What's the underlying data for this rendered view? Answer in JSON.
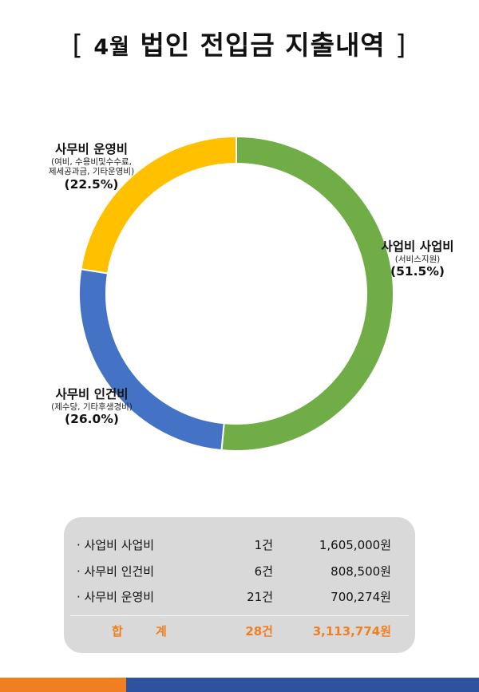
{
  "title": {
    "open_bracket": "[",
    "month": "4월",
    "text": "법인 전입금 지출내역",
    "close_bracket": "]"
  },
  "chart_data": {
    "type": "pie",
    "donut": true,
    "slices": [
      {
        "label": "사업비 사업비",
        "detail": "(서비스지원)",
        "value": 51.5,
        "pct_label": "(51.5%)",
        "color": "#70ad47"
      },
      {
        "label": "사무비 인건비",
        "detail": "(제수당, 기타후생경비)",
        "value": 26.0,
        "pct_label": "(26.0%)",
        "color": "#4472c4"
      },
      {
        "label": "사무비 운영비",
        "detail": "(여비, 수용비및수수료, 제세공과금, 기타운영비)",
        "value": 22.5,
        "pct_label": "(22.5%)",
        "color": "#ffc000"
      }
    ]
  },
  "labels": {
    "business": {
      "name": "사업비 사업비",
      "sub1": "(서비스지원)",
      "pct": "(51.5%)"
    },
    "personnel": {
      "name": "사무비 인건비",
      "sub1": "(제수당, 기타후생경비)",
      "pct": "(26.0%)"
    },
    "operating": {
      "name": "사무비 운영비",
      "sub1": "(여비, 수용비및수수료,",
      "sub2": "제세공과금, 기타운영비)",
      "pct": "(22.5%)"
    }
  },
  "summary": {
    "rows": [
      {
        "item": "· 사업비 사업비",
        "count": "1건",
        "amount": "1,605,000원"
      },
      {
        "item": "· 사무비 인건비",
        "count": "6건",
        "amount": "808,500원"
      },
      {
        "item": "· 사무비 운영비",
        "count": "21건",
        "amount": "700,274원"
      }
    ],
    "total": {
      "item": "합 계",
      "count": "28건",
      "amount": "3,113,774원"
    }
  },
  "colors": {
    "business": "#70ad47",
    "personnel": "#4472c4",
    "operating": "#ffc000",
    "total_text": "#f07f21",
    "footer_left": "#f07f21",
    "footer_right": "#2f52a0"
  }
}
